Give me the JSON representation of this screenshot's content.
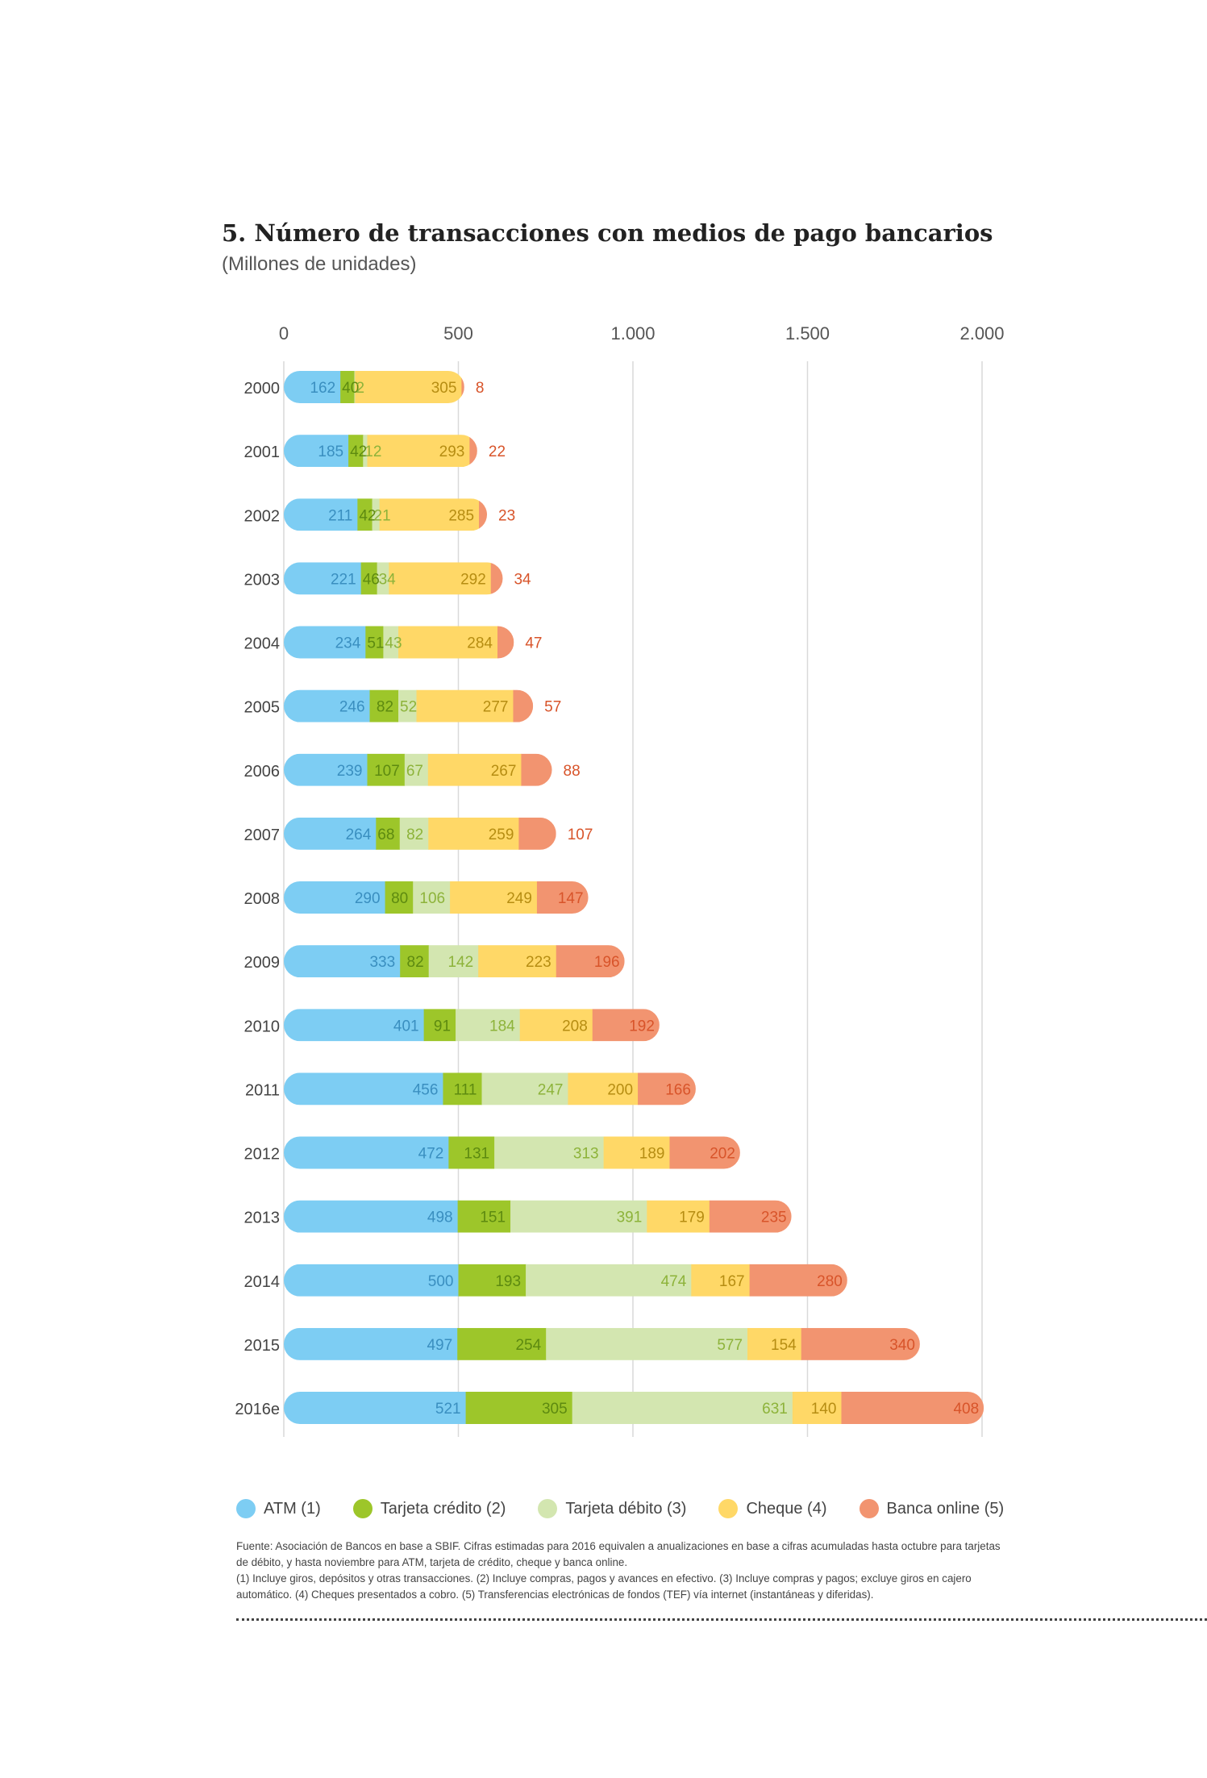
{
  "title": "5. Número de transacciones con medios de pago bancarios",
  "subtitle": "(Millones de unidades)",
  "chart_data": {
    "type": "bar",
    "orientation": "horizontal",
    "stacked": true,
    "categories": [
      "2000",
      "2001",
      "2002",
      "2003",
      "2004",
      "2005",
      "2006",
      "2007",
      "2008",
      "2009",
      "2010",
      "2011",
      "2012",
      "2013",
      "2014",
      "2015",
      "2016e"
    ],
    "series": [
      {
        "name": "ATM (1)",
        "color": "#7dcdf3",
        "label_color": "#3a8fc0",
        "values": [
          162,
          185,
          211,
          221,
          234,
          246,
          239,
          264,
          290,
          333,
          401,
          456,
          472,
          498,
          500,
          497,
          521
        ]
      },
      {
        "name": "Tarjeta crédito (2)",
        "color": "#9dc62a",
        "label_color": "#5d8a10",
        "values": [
          40,
          42,
          42,
          46,
          51,
          82,
          107,
          68,
          80,
          82,
          91,
          111,
          131,
          151,
          193,
          254,
          305
        ]
      },
      {
        "name": "Tarjeta débito (3)",
        "color": "#d3e6b0",
        "label_color": "#8db33a",
        "values": [
          2,
          12,
          21,
          34,
          43,
          52,
          67,
          82,
          106,
          142,
          184,
          247,
          313,
          391,
          474,
          577,
          631
        ]
      },
      {
        "name": "Cheque (4)",
        "color": "#ffd867",
        "label_color": "#b68d12",
        "values": [
          305,
          293,
          285,
          292,
          284,
          277,
          267,
          259,
          249,
          223,
          208,
          200,
          189,
          179,
          167,
          154,
          140
        ]
      },
      {
        "name": "Banca online (5)",
        "color": "#f29470",
        "label_color": "#d8542a",
        "values": [
          8,
          22,
          23,
          34,
          47,
          57,
          88,
          107,
          147,
          196,
          192,
          166,
          202,
          235,
          280,
          340,
          408
        ]
      }
    ],
    "xlim": [
      0,
      2000
    ],
    "xticks": [
      0,
      500,
      1000,
      1500,
      2000
    ],
    "xtick_labels": [
      "0",
      "500",
      "1.000",
      "1.500",
      "2.000"
    ],
    "grid": true,
    "legend_position": "bottom"
  },
  "legend_items": [
    "ATM (1)",
    "Tarjeta crédito (2)",
    "Tarjeta débito (3)",
    "Cheque (4)",
    "Banca online (5)"
  ],
  "notes": [
    "Fuente: Asociación de Bancos en base a SBIF. Cifras estimadas para 2016 equivalen a anualizaciones en base a cifras acumuladas hasta octubre para tarjetas de débito, y hasta noviembre para ATM, tarjeta de crédito, cheque y banca online.",
    "(1) Incluye giros, depósitos y otras transacciones. (2) Incluye compras, pagos y avances en efectivo. (3) Incluye compras y pagos; excluye giros en cajero automático. (4) Cheques presentados a cobro. (5) Transferencias electrónicas de fondos (TEF) vía internet (instantáneas y diferidas)."
  ]
}
